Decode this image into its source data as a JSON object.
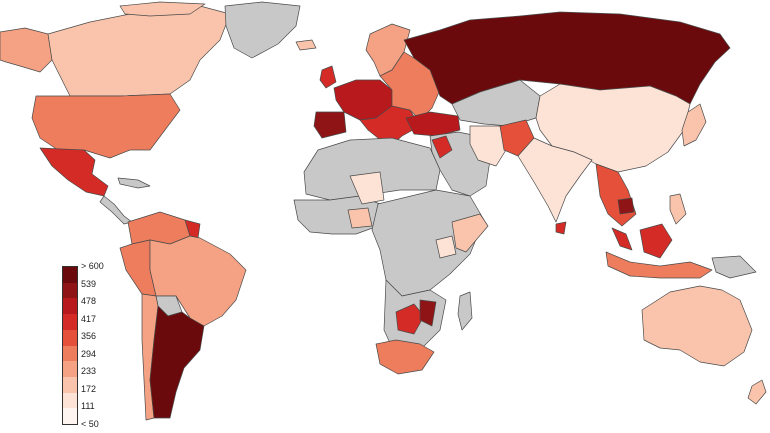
{
  "legend": {
    "labels": [
      "> 600",
      "539",
      "478",
      "417",
      "356",
      "294",
      "233",
      "172",
      "111",
      "< 50"
    ],
    "colors": [
      "#6a0a0c",
      "#8f1416",
      "#b8191d",
      "#d52b26",
      "#e4503a",
      "#ee7d5e",
      "#f4a283",
      "#f9c4ab",
      "#fde2d6",
      "#fff5f0"
    ]
  },
  "colors": {
    "no_data": "#c8c8c8",
    "border": "#4a4a4a",
    "background": "#ffffff"
  }
}
